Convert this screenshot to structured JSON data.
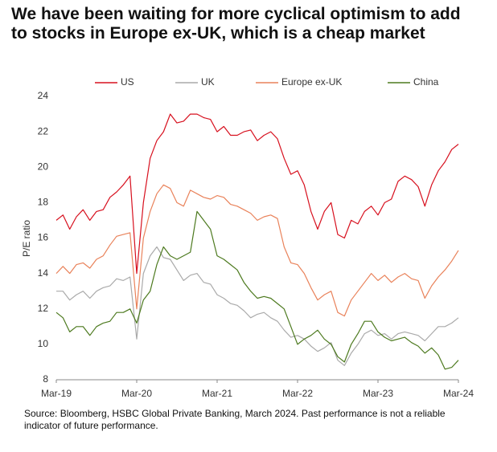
{
  "chart_data": {
    "type": "line",
    "title": "We have been waiting for more cyclical optimism to add to stocks in Europe ex-UK, which is a cheap market",
    "y_label": "P/E ratio",
    "source": "Source: Bloomberg, HSBC Global Private Banking, March 2024. Past performance is not a reliable indicator of future performance.",
    "x": [
      "Mar-19",
      "Apr-19",
      "May-19",
      "Jun-19",
      "Jul-19",
      "Aug-19",
      "Sep-19",
      "Oct-19",
      "Nov-19",
      "Dec-19",
      "Jan-20",
      "Feb-20",
      "Mar-20",
      "Apr-20",
      "May-20",
      "Jun-20",
      "Jul-20",
      "Aug-20",
      "Sep-20",
      "Oct-20",
      "Nov-20",
      "Dec-20",
      "Jan-21",
      "Feb-21",
      "Mar-21",
      "Apr-21",
      "May-21",
      "Jun-21",
      "Jul-21",
      "Aug-21",
      "Sep-21",
      "Oct-21",
      "Nov-21",
      "Dec-21",
      "Jan-22",
      "Feb-22",
      "Mar-22",
      "Apr-22",
      "May-22",
      "Jun-22",
      "Jul-22",
      "Aug-22",
      "Sep-22",
      "Oct-22",
      "Nov-22",
      "Dec-22",
      "Jan-23",
      "Feb-23",
      "Mar-23",
      "Apr-23",
      "May-23",
      "Jun-23",
      "Jul-23",
      "Aug-23",
      "Sep-23",
      "Oct-23",
      "Nov-23",
      "Dec-23",
      "Jan-24",
      "Feb-24",
      "Mar-24"
    ],
    "xticks": [
      "Mar-19",
      "Mar-20",
      "Mar-21",
      "Mar-22",
      "Mar-23",
      "Mar-24"
    ],
    "ylim": [
      8,
      24
    ],
    "yticks": [
      8,
      10,
      12,
      14,
      16,
      18,
      20,
      22,
      24
    ],
    "grid": false,
    "series": [
      {
        "name": "US",
        "color": "#d7101e",
        "values": [
          17,
          17.3,
          16.5,
          17.2,
          17.6,
          17,
          17.5,
          17.6,
          18.3,
          18.6,
          19,
          19.5,
          14,
          18,
          20.5,
          21.5,
          22,
          23,
          22.5,
          22.6,
          23,
          23,
          22.8,
          22.7,
          22,
          22.3,
          21.8,
          21.8,
          22,
          22.1,
          21.5,
          21.8,
          22,
          21.6,
          20.5,
          19.6,
          19.8,
          19,
          17.5,
          16.5,
          17.5,
          18,
          16.2,
          16,
          17,
          16.8,
          17.5,
          17.8,
          17.3,
          18,
          18.2,
          19.2,
          19.5,
          19.3,
          18.9,
          17.8,
          19,
          19.8,
          20.3,
          21,
          21.3
        ]
      },
      {
        "name": "UK",
        "color": "#aaaaaa",
        "values": [
          13,
          13,
          12.5,
          12.8,
          13,
          12.6,
          13,
          13.2,
          13.3,
          13.7,
          13.6,
          13.8,
          10.3,
          14,
          15,
          15.5,
          14.9,
          14.8,
          14.2,
          13.6,
          13.9,
          14,
          13.5,
          13.4,
          12.8,
          12.6,
          12.3,
          12.2,
          11.9,
          11.5,
          11.7,
          11.8,
          11.5,
          11.3,
          10.8,
          10.4,
          10.5,
          10.3,
          9.9,
          9.6,
          9.8,
          10.1,
          9.1,
          8.8,
          9.5,
          10,
          10.6,
          10.8,
          10.5,
          10.6,
          10.3,
          10.6,
          10.7,
          10.6,
          10.5,
          10.2,
          10.6,
          11,
          11,
          11.2,
          11.5
        ]
      },
      {
        "name": "Europe ex-UK",
        "color": "#e9825a",
        "values": [
          14,
          14.4,
          14,
          14.5,
          14.6,
          14.3,
          14.8,
          15,
          15.6,
          16.1,
          16.2,
          16.3,
          12,
          16,
          17.5,
          18.5,
          19,
          18.8,
          18,
          17.8,
          18.7,
          18.5,
          18.3,
          18.2,
          18.4,
          18.3,
          17.9,
          17.8,
          17.6,
          17.4,
          17,
          17.2,
          17.3,
          17.1,
          15.5,
          14.6,
          14.5,
          14,
          13.2,
          12.5,
          12.8,
          13,
          11.8,
          11.6,
          12.5,
          13,
          13.5,
          14,
          13.6,
          13.9,
          13.5,
          13.8,
          14,
          13.7,
          13.6,
          12.6,
          13.3,
          13.8,
          14.2,
          14.7,
          15.3
        ]
      },
      {
        "name": "China",
        "color": "#4d7a1f",
        "values": [
          11.8,
          11.5,
          10.7,
          11,
          11,
          10.5,
          11,
          11.2,
          11.3,
          11.8,
          11.8,
          12,
          11.2,
          12.5,
          13,
          14.5,
          15.5,
          15,
          14.8,
          15,
          15.2,
          17.5,
          17,
          16.5,
          15,
          14.8,
          14.5,
          14.2,
          13.5,
          13,
          12.6,
          12.7,
          12.6,
          12.3,
          12,
          11,
          10,
          10.3,
          10.5,
          10.8,
          10.3,
          10,
          9.3,
          9,
          10,
          10.6,
          11.3,
          11.3,
          10.7,
          10.4,
          10.2,
          10.3,
          10.4,
          10.1,
          9.9,
          9.5,
          9.8,
          9.4,
          8.6,
          8.7,
          9.1
        ]
      }
    ]
  }
}
